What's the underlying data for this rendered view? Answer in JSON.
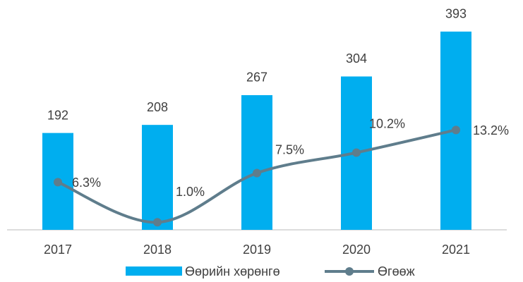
{
  "chart_data": {
    "type": "combo",
    "categories": [
      "2017",
      "2018",
      "2019",
      "2020",
      "2021"
    ],
    "series": [
      {
        "name": "Өөрийн хөрөнгө",
        "type": "bar",
        "color": "#00aeef",
        "values": [
          192,
          208,
          267,
          304,
          393
        ]
      },
      {
        "name": "Өгөөж",
        "type": "line",
        "axis": "y2",
        "color": "#5f7d8c",
        "values": [
          6.3,
          1.0,
          7.5,
          10.2,
          13.2
        ],
        "value_labels": [
          "6.3%",
          "1.0%",
          "7.5%",
          "10.2%",
          "13.2%"
        ]
      }
    ],
    "ylim": [
      0,
      450
    ],
    "y2lim": [
      0,
      30
    ],
    "grid": false,
    "legend": "bottom"
  }
}
